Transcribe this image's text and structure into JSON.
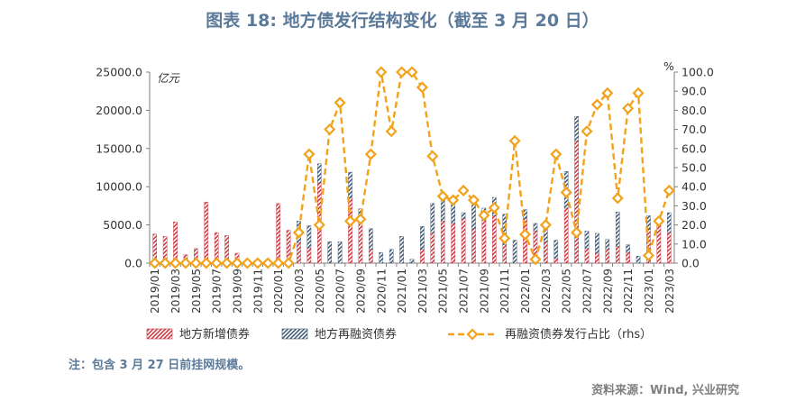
{
  "title": "图表 18: 地方债发行结构变化（截至 3 月 20 日）",
  "note": "注：包含 3 月 27 日前挂网规模。",
  "source": "资料来源：Wind, 兴业研究",
  "colors": {
    "new_bond": "#c8323c",
    "refinance_bond": "#3d5570",
    "ratio_line": "#f2a21b",
    "title": "#5b7a9a"
  },
  "chart_data": {
    "type": "bar",
    "title": "图表 18: 地方债发行结构变化（截至 3 月 20 日）",
    "left_axis_unit": "亿元",
    "right_axis_unit": "%",
    "ylim": [
      0,
      25000
    ],
    "ylim_right": [
      0,
      100
    ],
    "yticks_left": [
      "0.0",
      "5000.0",
      "10000.0",
      "15000.0",
      "20000.0",
      "25000.0"
    ],
    "yticks_right": [
      "0.0",
      "10.0",
      "20.0",
      "30.0",
      "40.0",
      "50.0",
      "60.0",
      "70.0",
      "80.0",
      "90.0",
      "100.0"
    ],
    "categories": [
      "2019/01",
      "2019/02",
      "2019/03",
      "2019/04",
      "2019/05",
      "2019/06",
      "2019/07",
      "2019/08",
      "2019/09",
      "2019/10",
      "2019/11",
      "2019/12",
      "2020/01",
      "2020/02",
      "2020/03",
      "2020/04",
      "2020/05",
      "2020/06",
      "2020/07",
      "2020/08",
      "2020/09",
      "2020/10",
      "2020/11",
      "2020/12",
      "2021/01",
      "2021/02",
      "2021/03",
      "2021/04",
      "2021/05",
      "2021/06",
      "2021/07",
      "2021/08",
      "2021/09",
      "2021/10",
      "2021/11",
      "2021/12",
      "2022/01",
      "2022/02",
      "2022/03",
      "2022/04",
      "2022/05",
      "2022/06",
      "2022/07",
      "2022/08",
      "2022/09",
      "2022/10",
      "2022/11",
      "2022/12",
      "2023/01",
      "2023/02",
      "2023/03"
    ],
    "series": [
      {
        "name": "地方新增债券",
        "kind": "bar",
        "axis": "left",
        "values": [
          3800,
          3500,
          5400,
          1100,
          1900,
          8000,
          4000,
          3600,
          1300,
          0,
          0,
          0,
          7800,
          4300,
          2700,
          2000,
          10500,
          0,
          0,
          8500,
          5300,
          1800,
          0,
          0,
          0,
          0,
          1800,
          4000,
          5500,
          5200,
          5800,
          4500,
          5600,
          6200,
          2400,
          0,
          5800,
          4200,
          2800,
          600,
          7200,
          16000,
          1900,
          1300,
          1800,
          2200,
          1400,
          0,
          4400,
          5200,
          4000
        ]
      },
      {
        "name": "地方再融资债券",
        "kind": "bar",
        "axis": "left",
        "values": [
          0,
          0,
          0,
          0,
          0,
          0,
          0,
          0,
          0,
          0,
          0,
          0,
          0,
          0,
          2800,
          2900,
          2500,
          2800,
          2800,
          3400,
          1800,
          2700,
          1400,
          1800,
          3500,
          500,
          3000,
          3800,
          3300,
          2800,
          800,
          3100,
          1600,
          2400,
          4000,
          3000,
          1200,
          1000,
          2200,
          2400,
          4800,
          3200,
          2300,
          2600,
          1300,
          4500,
          1000,
          900,
          1800,
          0,
          2600
        ]
      },
      {
        "name": "再融资债券发行占比（rhs）",
        "kind": "line",
        "axis": "right",
        "values": [
          0,
          0,
          0,
          0,
          0,
          0,
          0,
          0,
          0,
          0,
          0,
          0,
          0,
          0,
          16,
          57,
          20,
          70,
          84,
          22,
          23,
          57,
          100,
          69,
          100,
          100,
          92,
          56,
          35,
          33,
          38,
          33,
          25,
          29,
          13,
          64,
          15,
          2,
          20,
          57,
          37,
          16,
          69,
          83,
          89,
          34,
          81,
          89,
          4,
          22,
          38
        ]
      }
    ],
    "legend_position": "bottom",
    "grid": false
  }
}
